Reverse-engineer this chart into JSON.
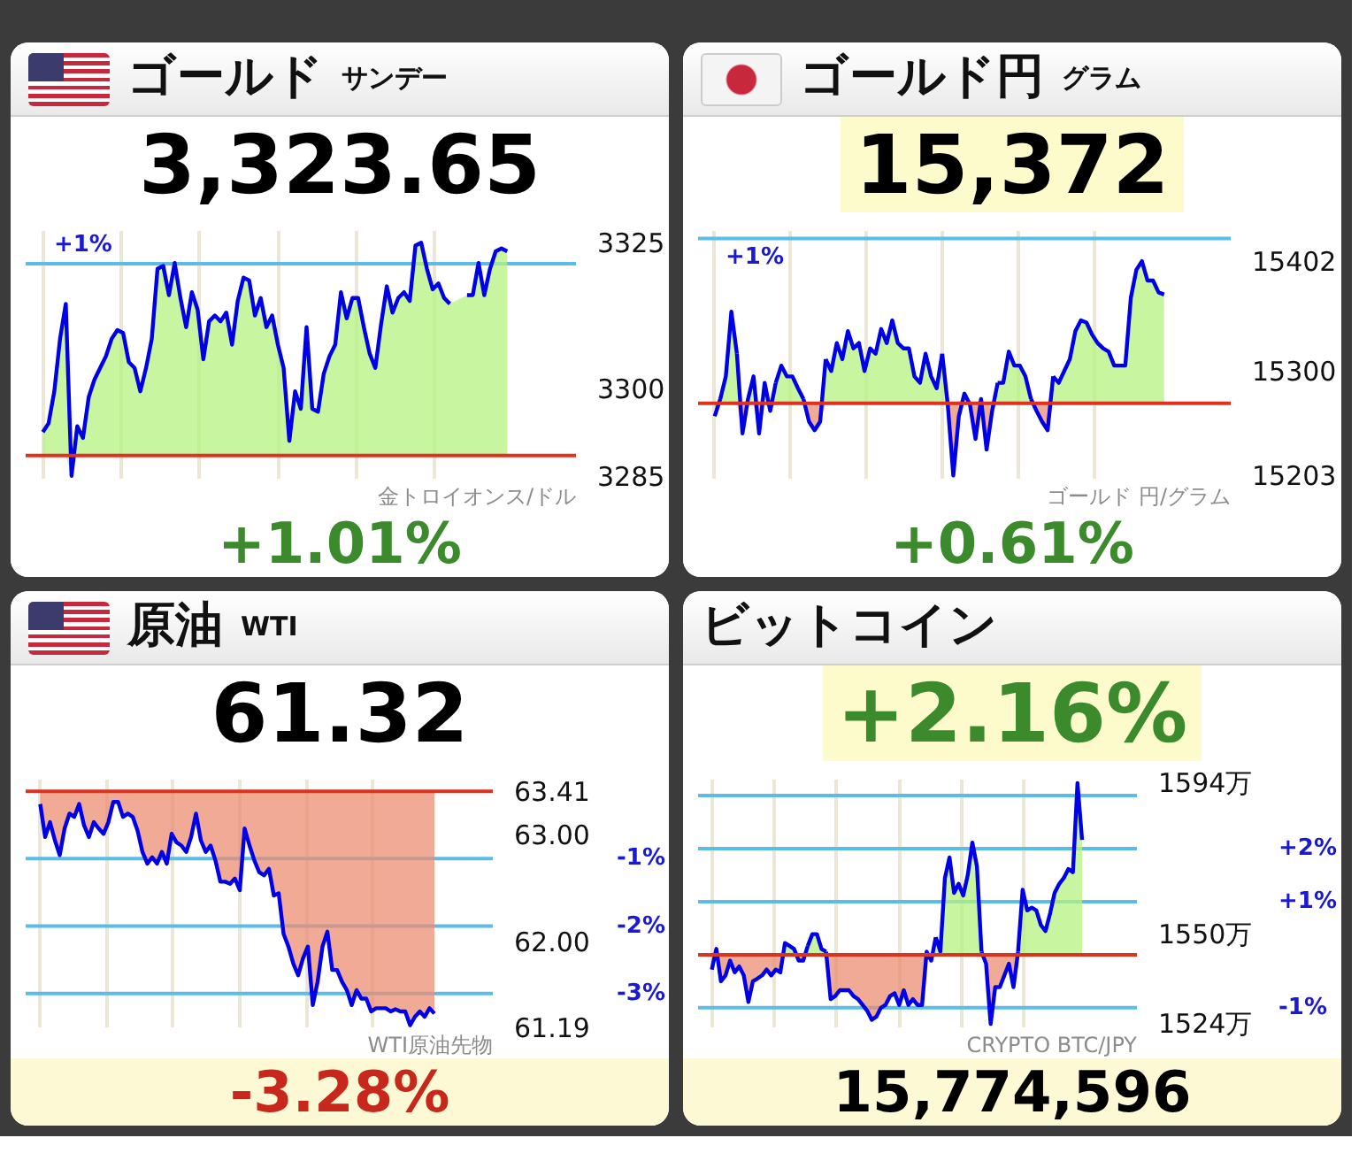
{
  "chart_data": [
    {
      "type": "line",
      "title": "ゴールド",
      "subtitle": "サンデー",
      "annotations": [
        "3,323.65",
        "+1.01%",
        "金トロイオンス/ドル",
        {
          "text": "+1%",
          "y": 3321.4
        }
      ],
      "categories": [
        null,
        null,
        null,
        null,
        null,
        null,
        null,
        null,
        null,
        null,
        null,
        null,
        null,
        null,
        null,
        null,
        null,
        null,
        null,
        null,
        null,
        null,
        null,
        null,
        null,
        null,
        null,
        null,
        null,
        null,
        null,
        null,
        null,
        null,
        null,
        null,
        null,
        null,
        null,
        null,
        null,
        null,
        null,
        null,
        null,
        null,
        null,
        null,
        null,
        null,
        null,
        null,
        null,
        null,
        null,
        null,
        null,
        null,
        null,
        null,
        null,
        null,
        null,
        null,
        null,
        null,
        null,
        null,
        null,
        null,
        null,
        null,
        null,
        null,
        null,
        null,
        null,
        null,
        null,
        null,
        null,
        null
      ],
      "series": [
        {
          "color": "#0000e6",
          "values": [
            3292.5,
            3294,
            3299.5,
            3308.5,
            3314.5,
            3285,
            3293.5,
            3291.5,
            3298.5,
            3301.5,
            3303.5,
            3305.5,
            3308.5,
            3310,
            3309.5,
            3304.5,
            3303.5,
            3299.5,
            3303.5,
            3308.5,
            3320.5,
            3321,
            3316,
            3321.5,
            3315.5,
            3310.5,
            3316.5,
            3313.5,
            3305,
            3311.5,
            3312.5,
            3311.5,
            3313,
            3307.5,
            3315,
            3319,
            3318.5,
            3312.5,
            3315.5,
            3310.5,
            3312.5,
            3307.5,
            3303.5,
            3291,
            3299.5,
            3296.5,
            3310.5,
            3296.5,
            3296,
            3302.5,
            3305.5,
            3307.5,
            3316.5,
            3312,
            3315.5,
            3315.5,
            3310.5,
            3306,
            3303.5,
            3311,
            3317.5,
            3313,
            3315.5,
            3316.5,
            3315,
            3324.5,
            3325,
            3320.5,
            3317,
            3318,
            3315.5,
            3314.5,
            null,
            null,
            3316,
            3316,
            3321.5,
            3316,
            3320.5,
            3323.5,
            3324,
            3323.5
          ],
          "lower": [
            3288.5,
            3288.5,
            3288.5,
            3288.5,
            3288.5,
            3285,
            3288.5,
            3288.5,
            3288.5,
            3288.5,
            3288.5,
            3288.5,
            3288.5,
            3288.5,
            3288.5,
            3288.5,
            3288.5,
            3288.5,
            3288.5,
            3288.5,
            3288.5,
            3288.5,
            3288.5,
            3288.5,
            3288.5,
            3288.5,
            3288.5,
            3288.5,
            3288.5,
            3288.5,
            3288.5,
            3288.5,
            3288.5,
            3288.5,
            3288.5,
            3288.5,
            3288.5,
            3288.5,
            3288.5,
            3288.5,
            3288.5,
            3288.5,
            3288.5,
            3288.5,
            3288.5,
            3288.5,
            3288.5,
            3288.5,
            3288.5,
            3288.5,
            3288.5,
            3288.5,
            3288.5,
            3288.5,
            3288.5,
            3288.5,
            3288.5,
            3288.5,
            3288.5,
            3288.5,
            3288.5,
            3288.5,
            3288.5,
            3288.5,
            3288.5,
            3288.5,
            3288.5,
            3288.5,
            3288.5,
            3288.5,
            3288.5,
            3288.5,
            null,
            null,
            3288.5,
            3288.5,
            3288.5,
            3288.5,
            3288.5,
            3288.5,
            3288.5,
            3288.5
          ],
          "upper": [
            3292.5,
            3294,
            3299.5,
            3308.5,
            3314.5,
            3288.5,
            3293.5,
            3291.5,
            3298.5,
            3301.5,
            3303.5,
            3305.5,
            3308.5,
            3310,
            3309.5,
            3304.5,
            3303.5,
            3299.5,
            3303.5,
            3308.5,
            3320.5,
            3321,
            3316,
            3321.5,
            3315.5,
            3310.5,
            3316.5,
            3313.5,
            3305,
            3311.5,
            3312.5,
            3311.5,
            3313,
            3307.5,
            3315,
            3319,
            3318.5,
            3312.5,
            3315.5,
            3310.5,
            3312.5,
            3307.5,
            3303.5,
            3291,
            3299.5,
            3296.5,
            3310.5,
            3296.5,
            3296,
            3302.5,
            3305.5,
            3307.5,
            3316.5,
            3312,
            3315.5,
            3315.5,
            3310.5,
            3306,
            3303.5,
            3311,
            3317.5,
            3313,
            3315.5,
            3316.5,
            3315,
            3324.5,
            3325,
            3320.5,
            3317,
            3318,
            3315.5,
            3314.5,
            null,
            null,
            3316,
            3316,
            3321.5,
            3316,
            3320.5,
            3323.5,
            3324,
            3323.5
          ]
        }
      ],
      "ylim": [
        3284.5,
        3327
      ],
      "yticks": [
        3285,
        3300,
        3325
      ],
      "ref_lines": [
        {
          "axis": "y",
          "value": 3288.5,
          "color": "#e0301e"
        },
        {
          "axis": "y",
          "value": 3321.4,
          "color": "#5cbce8"
        }
      ],
      "grid": "x",
      "tick_labels": "y"
    },
    {
      "type": "line",
      "title": "ゴールド円",
      "subtitle": "グラム",
      "annotations": [
        "15,372",
        "+0.61%",
        "ゴールド 円/グラム",
        {
          "text": "+1%",
          "y": 15423
        }
      ],
      "categories": [
        null,
        null,
        null,
        null,
        null,
        null,
        null,
        null,
        null,
        null,
        null,
        null,
        null,
        null,
        null,
        null,
        null,
        null,
        null,
        null,
        null,
        null,
        null,
        null,
        null,
        null,
        null,
        null,
        null,
        null,
        null,
        null,
        null,
        null,
        null,
        null,
        null,
        null,
        null,
        null,
        null,
        null,
        null,
        null,
        null,
        null,
        null,
        null,
        null,
        null,
        null,
        null,
        null,
        null,
        null,
        null,
        null,
        null,
        null,
        null,
        null,
        null,
        null,
        null,
        null,
        null,
        null,
        null,
        null,
        null,
        null,
        null,
        null,
        null,
        null,
        null,
        null,
        null,
        null,
        null,
        null,
        null
      ],
      "series": [
        {
          "color": "#0000e6",
          "values": [
            null,
            15274,
            15295,
            15355,
            15316,
            null,
            null,
            null,
            null,
            null,
            null,
            15289,
            15305,
            15295,
            15295,
            15284,
            15274,
            null,
            null,
            null,
            15311,
            15300,
            15326,
            15311,
            15337,
            15321,
            15326,
            15300,
            15321,
            15316,
            15339,
            15326,
            15347,
            15326,
            15321,
            15321,
            15295,
            15289,
            15316,
            15295,
            15284,
            15316,
            null,
            null,
            null,
            null,
            null,
            null,
            null,
            null,
            null,
            15289,
            15289,
            15318,
            15305,
            15305,
            15295,
            15274,
            null,
            null,
            null,
            15295,
            15289,
            15300,
            15311,
            15337,
            15347,
            15345,
            15334,
            15326,
            15321,
            15318,
            15305,
            15305,
            15305,
            15368,
            15394,
            15402,
            15384,
            15384,
            15373,
            15371
          ],
          "lower": [
            15270,
            15270,
            15270,
            15270,
            15270,
            15270,
            15270,
            15270,
            15270,
            15270,
            15270,
            15270,
            15270,
            15270,
            15270,
            15270,
            15270,
            15270,
            15270,
            15270,
            15270,
            15270,
            15270,
            15270,
            15270,
            15270,
            15270,
            15270,
            15270,
            15270,
            15270,
            15270,
            15270,
            15270,
            15270,
            15270,
            15270,
            15270,
            15270,
            15270,
            15270,
            15270,
            15270,
            15270,
            15270,
            15270,
            15270,
            15270,
            15270,
            15270,
            15270,
            15270,
            15270,
            15270,
            15270,
            15270,
            15270,
            15270,
            15270,
            15270,
            15270,
            15270,
            15270,
            15270,
            15270,
            15270,
            15270,
            15270,
            15270,
            15270,
            15270,
            15270,
            15270,
            15270,
            15270,
            15270,
            15270,
            15270,
            15270,
            15270,
            15270,
            15270
          ],
          "upper": [
            15270,
            15274,
            15295,
            15355,
            15316,
            15270,
            15274,
            15295,
            15270,
            15289,
            15270,
            15289,
            15305,
            15295,
            15295,
            15284,
            15274,
            15270,
            15270,
            15270,
            15311,
            15300,
            15326,
            15311,
            15337,
            15321,
            15326,
            15300,
            15321,
            15316,
            15339,
            15326,
            15347,
            15326,
            15321,
            15321,
            15295,
            15289,
            15316,
            15295,
            15284,
            15316,
            15270,
            15270,
            15270,
            15279,
            15270,
            15270,
            15274,
            15270,
            15270,
            15289,
            15289,
            15318,
            15305,
            15305,
            15295,
            15274,
            15270,
            15270,
            15270,
            15295,
            15289,
            15300,
            15311,
            15337,
            15347,
            15345,
            15334,
            15326,
            15321,
            15318,
            15305,
            15305,
            15305,
            15368,
            15394,
            15402,
            15384,
            15384,
            15373,
            15371
          ]
        },
        {
          "color": "#0000e6",
          "values": [
            15258,
            15274,
            null,
            null,
            15316,
            15242,
            15274,
            15295,
            15242,
            15289,
            15263,
            15289,
            null,
            null,
            null,
            null,
            15274,
            15253,
            15245,
            15253,
            15311,
            null,
            null,
            null,
            null,
            null,
            null,
            null,
            null,
            null,
            null,
            null,
            null,
            null,
            null,
            null,
            null,
            null,
            null,
            null,
            null,
            15316,
            15269,
            15203,
            15258,
            15279,
            15269,
            15237,
            15274,
            15227,
            15263,
            15289,
            null,
            null,
            null,
            null,
            null,
            15274,
            15263,
            15253,
            15245,
            15295,
            null,
            null,
            null,
            null,
            null,
            null,
            null,
            null,
            null,
            null,
            null,
            null,
            null,
            null,
            null,
            null,
            null,
            null,
            null,
            null
          ],
          "lower": [
            15258,
            15270,
            15270,
            15270,
            15270,
            15242,
            15270,
            15270,
            15242,
            15270,
            15263,
            15270,
            15270,
            15270,
            15270,
            15270,
            15270,
            15253,
            15245,
            15253,
            15270,
            15270,
            15270,
            15270,
            15270,
            15270,
            15270,
            15270,
            15270,
            15270,
            15270,
            15270,
            15270,
            15270,
            15270,
            15270,
            15270,
            15270,
            15270,
            15270,
            15270,
            15270,
            15269,
            15203,
            15258,
            15270,
            15269,
            15237,
            15270,
            15227,
            15263,
            15270,
            15270,
            15270,
            15270,
            15270,
            15270,
            15270,
            15263,
            15253,
            15245,
            15270,
            15270,
            15270,
            15270,
            15270,
            15270,
            15270,
            15270,
            15270,
            15270,
            15270,
            15270,
            15270,
            15270,
            15270,
            15270,
            15270,
            15270,
            15270,
            15270,
            15270
          ],
          "upper": [
            15270,
            15270,
            15270,
            15270,
            15270,
            15270,
            15270,
            15270,
            15270,
            15270,
            15270,
            15270,
            15270,
            15270,
            15270,
            15270,
            15270,
            15270,
            15270,
            15270,
            15270,
            15270,
            15270,
            15270,
            15270,
            15270,
            15270,
            15270,
            15270,
            15270,
            15270,
            15270,
            15270,
            15270,
            15270,
            15270,
            15270,
            15270,
            15270,
            15270,
            15270,
            15270,
            15270,
            15270,
            15270,
            15270,
            15270,
            15270,
            15270,
            15270,
            15270,
            15270,
            15270,
            15270,
            15270,
            15270,
            15270,
            15270,
            15270,
            15270,
            15270,
            15270,
            15270,
            15270,
            15270,
            15270,
            15270,
            15270,
            15270,
            15270,
            15270,
            15270,
            15270,
            15270,
            15270,
            15270,
            15270,
            15270,
            15270,
            15270,
            15270,
            15270
          ]
        }
      ],
      "ylim": [
        15200,
        15430
      ],
      "yticks": [
        15203,
        15300,
        15402
      ],
      "ref_lines": [
        {
          "axis": "y",
          "value": 15270,
          "color": "#e0301e"
        },
        {
          "axis": "y",
          "value": 15423,
          "color": "#5cbce8"
        }
      ],
      "grid": "x",
      "tick_labels": "y"
    },
    {
      "type": "line",
      "title": "原油",
      "subtitle": "WTI",
      "annotations": [
        "61.32",
        "-3.28%",
        "WTI原油先物"
      ],
      "categories": [
        null,
        null,
        null,
        null,
        null,
        null,
        null,
        null,
        null,
        null,
        null,
        null,
        null,
        null,
        null,
        null,
        null,
        null,
        null,
        null,
        null,
        null,
        null,
        null,
        null,
        null,
        null,
        null,
        null,
        null,
        null,
        null,
        null,
        null,
        null,
        null,
        null,
        null,
        null,
        null,
        null,
        null,
        null,
        null,
        null,
        null,
        null,
        null,
        null,
        null,
        null,
        null,
        null,
        null,
        null,
        null,
        null,
        null,
        null,
        null,
        null,
        null,
        null,
        null,
        null,
        null,
        null,
        null,
        null,
        null,
        null,
        null,
        null,
        null,
        null,
        null,
        null,
        null,
        null,
        null,
        null,
        null
      ],
      "series": [
        {
          "color": "#0000e6",
          "values": [
            63.29,
            62.98,
            63.12,
            62.95,
            62.81,
            63.06,
            63.2,
            63.17,
            63.29,
            63.09,
            62.98,
            63.12,
            63.06,
            63.01,
            63.12,
            63.31,
            63.31,
            63.17,
            63.2,
            63.17,
            63.04,
            62.84,
            62.73,
            62.79,
            62.73,
            62.84,
            62.73,
            63.01,
            62.93,
            62.9,
            62.84,
            62.98,
            63.2,
            62.95,
            62.84,
            62.9,
            62.76,
            62.56,
            62.56,
            62.54,
            62.59,
            62.48,
            63.06,
            62.9,
            62.76,
            62.65,
            62.62,
            62.68,
            62.43,
            62.45,
            62.07,
            61.95,
            61.79,
            61.68,
            61.84,
            61.95,
            61.4,
            61.62,
            61.95,
            62.09,
            61.73,
            61.73,
            61.62,
            61.54,
            61.4,
            61.54,
            61.46,
            61.46,
            61.34,
            61.37,
            61.37,
            61.37,
            61.34,
            61.36,
            61.34,
            61.34,
            61.21,
            61.29,
            61.34,
            61.29,
            61.37,
            61.32
          ],
          "lower": [
            63.29,
            62.98,
            63.12,
            62.95,
            62.81,
            63.06,
            63.2,
            63.17,
            63.29,
            63.09,
            62.98,
            63.12,
            63.06,
            63.01,
            63.12,
            63.31,
            63.31,
            63.17,
            63.2,
            63.17,
            63.04,
            62.84,
            62.73,
            62.79,
            62.73,
            62.84,
            62.73,
            63.01,
            62.93,
            62.9,
            62.84,
            62.98,
            63.2,
            62.95,
            62.84,
            62.9,
            62.76,
            62.56,
            62.56,
            62.54,
            62.59,
            62.48,
            63.06,
            62.9,
            62.76,
            62.65,
            62.62,
            62.68,
            62.43,
            62.45,
            62.07,
            61.95,
            61.79,
            61.68,
            61.84,
            61.95,
            61.4,
            61.62,
            61.95,
            62.09,
            61.73,
            61.73,
            61.62,
            61.54,
            61.4,
            61.54,
            61.46,
            61.46,
            61.34,
            61.37,
            61.37,
            61.37,
            61.34,
            61.36,
            61.34,
            61.34,
            61.21,
            61.29,
            61.34,
            61.29,
            61.37,
            61.32
          ],
          "upper": [
            63.41,
            63.41,
            63.41,
            63.41,
            63.41,
            63.41,
            63.41,
            63.41,
            63.41,
            63.41,
            63.41,
            63.41,
            63.41,
            63.41,
            63.41,
            63.41,
            63.41,
            63.41,
            63.41,
            63.41,
            63.41,
            63.41,
            63.41,
            63.41,
            63.41,
            63.41,
            63.41,
            63.41,
            63.41,
            63.41,
            63.41,
            63.41,
            63.41,
            63.41,
            63.41,
            63.41,
            63.41,
            63.41,
            63.41,
            63.41,
            63.41,
            63.41,
            63.41,
            63.41,
            63.41,
            63.41,
            63.41,
            63.41,
            63.41,
            63.41,
            63.41,
            63.41,
            63.41,
            63.41,
            63.41,
            63.41,
            63.41,
            63.41,
            63.41,
            63.41,
            63.41,
            63.41,
            63.41,
            63.41,
            63.41,
            63.41,
            63.41,
            63.41,
            63.41,
            63.41,
            63.41,
            63.41,
            63.41,
            63.41,
            63.41,
            63.41,
            63.41,
            63.41,
            63.41,
            63.41,
            63.41,
            63.41
          ]
        }
      ],
      "ylim": [
        61.19,
        63.52
      ],
      "yticks": [
        61.19,
        {
          "value": 62,
          "label": "62.00"
        },
        {
          "value": 63,
          "label": "63.00"
        },
        63.41
      ],
      "y2lim": [
        -3.5,
        0.17
      ],
      "y2ticks": [
        {
          "value": -1,
          "label": "-1%"
        },
        {
          "value": -2,
          "label": "-2%"
        },
        {
          "value": -3,
          "label": "-3%"
        }
      ],
      "ref_lines": [
        {
          "axis": "y",
          "value": 63.41,
          "color": "#e0301e"
        },
        {
          "axis": "y2",
          "value": -1,
          "color": "#5cbce8"
        },
        {
          "axis": "y2",
          "value": -2,
          "color": "#5cbce8"
        },
        {
          "axis": "y2",
          "value": -3,
          "color": "#5cbce8"
        }
      ],
      "grid": "x",
      "tick_labels": "y"
    },
    {
      "type": "line",
      "title": "ビットコイン",
      "annotations": [
        "+2.16%",
        "15,774,596",
        "CRYPTO BTC/JPY"
      ],
      "categories": [
        null,
        null,
        null,
        null,
        null,
        null,
        null,
        null,
        null,
        null,
        null,
        null,
        null,
        null,
        null,
        null,
        null,
        null,
        null,
        null,
        null,
        null,
        null,
        null,
        null,
        null,
        null,
        null,
        null,
        null,
        null,
        null,
        null,
        null,
        null,
        null,
        null,
        null,
        null,
        null,
        null,
        null,
        null,
        null,
        null,
        null,
        null,
        null,
        null,
        null,
        null,
        null,
        null,
        null,
        null,
        null,
        null,
        null,
        null,
        null,
        null,
        null,
        null,
        null,
        null,
        null,
        null,
        null,
        null,
        null,
        null,
        null,
        null,
        null,
        null,
        null,
        null,
        null,
        null,
        null,
        null,
        null
      ],
      "series": [
        {
          "color": "#0000e6",
          "values": [
            null,
            null,
            null,
            null,
            null,
            null,
            null,
            null,
            null,
            null,
            null,
            null,
            null,
            null,
            null,
            null,
            null,
            null,
            null,
            null,
            null,
            1546.7,
            1550.1,
            1550.1,
            1545.8,
            1545.0,
            null,
            null,
            null,
            null,
            null,
            null,
            null,
            null,
            null,
            null,
            null,
            null,
            null,
            null,
            null,
            null,
            null,
            null,
            null,
            null,
            null,
            null,
            null,
            1549.2,
            1545.0,
            1566.4,
            1572.4,
            1562.1,
            1564.7,
            1561.3,
            1567.3,
            1576.7,
            1569.8,
            1545.0,
            null,
            null,
            null,
            null,
            null,
            null,
            null,
            1545.0,
            1563.0,
            1557.0,
            1557.8,
            1557.0,
            1552.7,
            1551.0,
            1556.1,
            1562.1,
            1564.7,
            1566.4,
            1569.0,
            1568.1,
            1594,
            1577.5
          ],
          "lower": [
            1544.1,
            1544.1,
            1544.1,
            1544.1,
            1544.1,
            1544.1,
            1544.1,
            1544.1,
            1544.1,
            1544.1,
            1544.1,
            1544.1,
            1544.1,
            1544.1,
            1544.1,
            1544.1,
            1544.1,
            1544.1,
            1544.1,
            1544.1,
            1544.1,
            1544.1,
            1544.1,
            1544.1,
            1544.1,
            1544.1,
            1544.1,
            1544.1,
            1544.1,
            1544.1,
            1544.1,
            1544.1,
            1544.1,
            1544.1,
            1544.1,
            1544.1,
            1544.1,
            1544.1,
            1544.1,
            1544.1,
            1544.1,
            1544.1,
            1544.1,
            1544.1,
            1544.1,
            1544.1,
            1544.1,
            1544.1,
            1544.1,
            1544.1,
            1544.1,
            1544.1,
            1544.1,
            1544.1,
            1544.1,
            1544.1,
            1544.1,
            1544.1,
            1544.1,
            1544.1,
            1544.1,
            1544.1,
            1544.1,
            1544.1,
            1544.1,
            1544.1,
            1544.1,
            1544.1,
            1544.1,
            1544.1,
            1544.1,
            1544.1,
            1544.1,
            1544.1,
            1544.1,
            1544.1,
            1544.1,
            1544.1,
            1544.1,
            1544.1,
            1544.1,
            1544.1
          ],
          "upper": [
            1544.1,
            1545.8,
            1544.1,
            1544.1,
            1544.1,
            1544.1,
            1544.1,
            1544.1,
            1544.1,
            1544.1,
            1544.1,
            1544.1,
            1544.1,
            1544.1,
            1544.1,
            1544.1,
            1547.5,
            1546.7,
            1545.8,
            1544.1,
            1544.1,
            1546.7,
            1550.1,
            1550.1,
            1545.8,
            1545.0,
            1544.1,
            1544.1,
            1544.1,
            1544.1,
            1544.1,
            1544.1,
            1544.1,
            1544.1,
            1544.1,
            1544.1,
            1544.1,
            1544.1,
            1544.1,
            1544.1,
            1544.1,
            1544.1,
            1544.1,
            1544.1,
            1544.1,
            1544.1,
            1544.1,
            1545.0,
            1544.1,
            1549.2,
            1545.0,
            1566.4,
            1572.4,
            1562.1,
            1564.7,
            1561.3,
            1567.3,
            1576.7,
            1569.8,
            1545.0,
            1544.1,
            1544.1,
            1544.1,
            1544.1,
            1544.1,
            1544.1,
            1544.1,
            1545.0,
            1563.0,
            1557.0,
            1557.8,
            1557.0,
            1552.7,
            1551.0,
            1556.1,
            1562.1,
            1564.7,
            1566.4,
            1569.0,
            1568.1,
            1594,
            1577.5
          ]
        },
        {
          "color": "#0000e6",
          "values": [
            1539.8,
            1545.8,
            1536.4,
            1538.1,
            1542.4,
            1539.0,
            1540.7,
            1538.1,
            1530.4,
            1536.4,
            1537.2,
            1538.1,
            1539.8,
            1538.1,
            1539.8,
            1539.0,
            1547.5,
            1546.7,
            1545.8,
            1542.4,
            1542.4,
            1546.7,
            null,
            null,
            null,
            1545.0,
            1531.2,
            1532.1,
            1533.8,
            1533.8,
            1533.8,
            1532.1,
            1531.2,
            1529.5,
            1527.8,
            1525.2,
            1526.1,
            1528.7,
            1529.5,
            1532.1,
            1532.9,
            1529.5,
            1533.8,
            1529.5,
            1531.2,
            1529.5,
            1529.5,
            1545.0,
            1542.4,
            1549.2,
            null,
            null,
            null,
            null,
            null,
            null,
            null,
            null,
            null,
            1545.0,
            1541.5,
            1524,
            1534.7,
            1534.7,
            1538.1,
            1541.5,
            1534.7,
            1545.0,
            null,
            null,
            null,
            null,
            null,
            null,
            null,
            null,
            null,
            null,
            null,
            null,
            null,
            null
          ],
          "lower": [
            1539.8,
            1544.1,
            1536.4,
            1538.1,
            1542.4,
            1539.0,
            1540.7,
            1538.1,
            1530.4,
            1536.4,
            1537.2,
            1538.1,
            1539.8,
            1538.1,
            1539.8,
            1539.0,
            1544.1,
            1544.1,
            1544.1,
            1542.4,
            1542.4,
            1544.1,
            1544.1,
            1544.1,
            1544.1,
            1544.1,
            1531.2,
            1532.1,
            1533.8,
            1533.8,
            1533.8,
            1532.1,
            1531.2,
            1529.5,
            1527.8,
            1525.2,
            1526.1,
            1528.7,
            1529.5,
            1532.1,
            1532.9,
            1529.5,
            1533.8,
            1529.5,
            1531.2,
            1529.5,
            1529.5,
            1544.1,
            1542.4,
            1544.1,
            1544.1,
            1544.1,
            1544.1,
            1544.1,
            1544.1,
            1544.1,
            1544.1,
            1544.1,
            1544.1,
            1544.1,
            1541.5,
            1524,
            1534.7,
            1534.7,
            1538.1,
            1541.5,
            1534.7,
            1544.1,
            1544.1,
            1544.1,
            1544.1,
            1544.1,
            1544.1,
            1544.1,
            1544.1,
            1544.1,
            1544.1,
            1544.1,
            1544.1,
            1544.1,
            1544.1,
            1544.1
          ],
          "upper": [
            1544.1,
            1544.1,
            1544.1,
            1544.1,
            1544.1,
            1544.1,
            1544.1,
            1544.1,
            1544.1,
            1544.1,
            1544.1,
            1544.1,
            1544.1,
            1544.1,
            1544.1,
            1544.1,
            1544.1,
            1544.1,
            1544.1,
            1544.1,
            1544.1,
            1544.1,
            1544.1,
            1544.1,
            1544.1,
            1544.1,
            1544.1,
            1544.1,
            1544.1,
            1544.1,
            1544.1,
            1544.1,
            1544.1,
            1544.1,
            1544.1,
            1544.1,
            1544.1,
            1544.1,
            1544.1,
            1544.1,
            1544.1,
            1544.1,
            1544.1,
            1544.1,
            1544.1,
            1544.1,
            1544.1,
            1544.1,
            1544.1,
            1544.1,
            1544.1,
            1544.1,
            1544.1,
            1544.1,
            1544.1,
            1544.1,
            1544.1,
            1544.1,
            1544.1,
            1544.1,
            1544.1,
            1544.1,
            1544.1,
            1544.1,
            1544.1,
            1544.1,
            1544.1,
            1544.1,
            1544.1,
            1544.1,
            1544.1,
            1544.1,
            1544.1,
            1544.1,
            1544.1,
            1544.1,
            1544.1,
            1544.1,
            1544.1,
            1544.1,
            1544.1,
            1544.1
          ]
        }
      ],
      "ylim": [
        1523,
        1595
      ],
      "yticks": [
        {
          "value": 1524,
          "label": "1524万"
        },
        {
          "value": 1550,
          "label": "1550万"
        },
        {
          "value": 1594,
          "label": "1594万"
        }
      ],
      "y2lim": [
        -1.37,
        3.3
      ],
      "y2ticks": [
        {
          "value": 2,
          "label": "+2%"
        },
        {
          "value": 1,
          "label": "+1%"
        },
        {
          "value": -1,
          "label": "-1%"
        }
      ],
      "ref_lines": [
        {
          "axis": "y",
          "value": 1544.1,
          "color": "#e0301e"
        },
        {
          "axis": "y2",
          "value": 3,
          "color": "#5cbce8"
        },
        {
          "axis": "y2",
          "value": 2,
          "color": "#5cbce8"
        },
        {
          "axis": "y2",
          "value": 1,
          "color": "#5cbce8"
        },
        {
          "axis": "y2",
          "value": -1,
          "color": "#5cbce8"
        }
      ],
      "grid": "x",
      "tick_labels": "y"
    }
  ]
}
